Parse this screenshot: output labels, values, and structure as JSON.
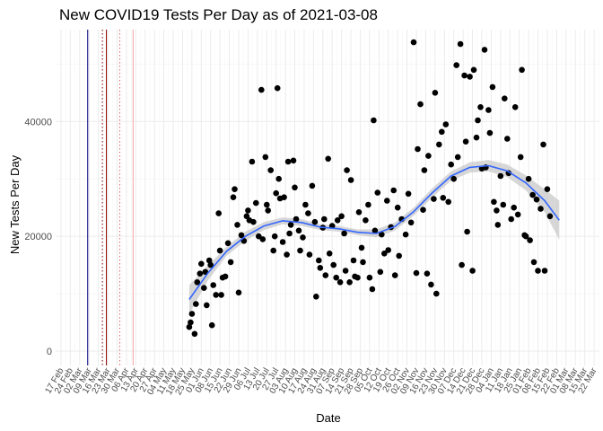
{
  "chart_data": {
    "type": "scatter",
    "title": "New COVID19 Tests Per Day as of 2021-03-08",
    "xlabel": "Date",
    "ylabel": "New Tests Per Day",
    "x_range": [
      "2020-02-13",
      "2021-03-26"
    ],
    "ylim": [
      -2500,
      56000
    ],
    "y_ticks": [
      0,
      20000,
      40000
    ],
    "y_tick_labels": [
      "0",
      "20000",
      "40000"
    ],
    "x_tick_labels": [
      "17 Feb",
      "24 Feb",
      "02 Mar",
      "09 Mar",
      "16 Mar",
      "23 Mar",
      "30 Mar",
      "06 Apr",
      "13 Apr",
      "20 Apr",
      "27 Apr",
      "04 May",
      "11 May",
      "18 May",
      "25 May",
      "01 Jun",
      "08 Jun",
      "15 Jun",
      "22 Jun",
      "29 Jun",
      "06 Jul",
      "13 Jul",
      "20 Jul",
      "27 Jul",
      "03 Aug",
      "10 Aug",
      "17 Aug",
      "24 Aug",
      "31 Aug",
      "07 Sep",
      "14 Sep",
      "21 Sep",
      "28 Sep",
      "05 Oct",
      "12 Oct",
      "19 Oct",
      "26 Oct",
      "02 Nov",
      "09 Nov",
      "16 Nov",
      "23 Nov",
      "30 Nov",
      "07 Dec",
      "14 Dec",
      "21 Dec",
      "28 Dec",
      "04 Jan",
      "11 Jan",
      "18 Jan",
      "25 Jan",
      "01 Feb",
      "08 Feb",
      "15 Feb",
      "22 Feb",
      "01 Mar",
      "08 Mar",
      "15 Mar",
      "22 Mar"
    ],
    "x_tick_dates": [
      "2020-02-17",
      "2020-02-24",
      "2020-03-02",
      "2020-03-09",
      "2020-03-16",
      "2020-03-23",
      "2020-03-30",
      "2020-04-06",
      "2020-04-13",
      "2020-04-20",
      "2020-04-27",
      "2020-05-04",
      "2020-05-11",
      "2020-05-18",
      "2020-05-25",
      "2020-06-01",
      "2020-06-08",
      "2020-06-15",
      "2020-06-22",
      "2020-06-29",
      "2020-07-06",
      "2020-07-13",
      "2020-07-20",
      "2020-07-27",
      "2020-08-03",
      "2020-08-10",
      "2020-08-17",
      "2020-08-24",
      "2020-08-31",
      "2020-09-07",
      "2020-09-14",
      "2020-09-21",
      "2020-09-28",
      "2020-10-05",
      "2020-10-12",
      "2020-10-19",
      "2020-10-26",
      "2020-11-02",
      "2020-11-09",
      "2020-11-16",
      "2020-11-23",
      "2020-11-30",
      "2020-12-07",
      "2020-12-14",
      "2020-12-21",
      "2020-12-28",
      "2021-01-04",
      "2021-01-11",
      "2021-01-18",
      "2021-01-25",
      "2021-02-01",
      "2021-02-08",
      "2021-02-15",
      "2021-02-22",
      "2021-03-01",
      "2021-03-08",
      "2021-03-15",
      "2021-03-22"
    ],
    "vlines": [
      {
        "date": "2020-03-08",
        "color": "#000080",
        "style": "solid"
      },
      {
        "date": "2020-03-19",
        "color": "#8b0000",
        "style": "dotted"
      },
      {
        "date": "2020-03-22",
        "color": "#8b0000",
        "style": "solid"
      },
      {
        "date": "2020-04-01",
        "color": "#e06666",
        "style": "dotted"
      },
      {
        "date": "2020-04-11",
        "color": "#f4a6a6",
        "style": "solid"
      }
    ],
    "grid": true,
    "point_color": "#000000",
    "smooth_color": "#3366ff",
    "band_color": "#c9c9c9",
    "series": [
      {
        "type": "points",
        "points": [
          [
            "2020-05-23",
            4200
          ],
          [
            "2020-05-24",
            5000
          ],
          [
            "2020-05-25",
            6500
          ],
          [
            "2020-05-27",
            3000
          ],
          [
            "2020-05-28",
            8200
          ],
          [
            "2020-05-29",
            12000
          ],
          [
            "2020-05-31",
            13500
          ],
          [
            "2020-06-01",
            15200
          ],
          [
            "2020-06-03",
            11000
          ],
          [
            "2020-06-04",
            13800
          ],
          [
            "2020-06-05",
            8000
          ],
          [
            "2020-06-07",
            15800
          ],
          [
            "2020-06-08",
            15000
          ],
          [
            "2020-06-09",
            4500
          ],
          [
            "2020-06-10",
            11500
          ],
          [
            "2020-06-12",
            9800
          ],
          [
            "2020-06-14",
            24000
          ],
          [
            "2020-06-15",
            17500
          ],
          [
            "2020-06-16",
            9800
          ],
          [
            "2020-06-17",
            12800
          ],
          [
            "2020-06-19",
            13000
          ],
          [
            "2020-06-21",
            18800
          ],
          [
            "2020-06-23",
            15500
          ],
          [
            "2020-06-25",
            26800
          ],
          [
            "2020-06-26",
            28200
          ],
          [
            "2020-06-28",
            22000
          ],
          [
            "2020-06-29",
            10200
          ],
          [
            "2020-07-01",
            20200
          ],
          [
            "2020-07-03",
            19200
          ],
          [
            "2020-07-05",
            23500
          ],
          [
            "2020-07-06",
            24500
          ],
          [
            "2020-07-07",
            22800
          ],
          [
            "2020-07-09",
            33000
          ],
          [
            "2020-07-10",
            22500
          ],
          [
            "2020-07-12",
            25800
          ],
          [
            "2020-07-14",
            20000
          ],
          [
            "2020-07-16",
            45500
          ],
          [
            "2020-07-17",
            19500
          ],
          [
            "2020-07-19",
            33800
          ],
          [
            "2020-07-20",
            25500
          ],
          [
            "2020-07-21",
            24500
          ],
          [
            "2020-07-23",
            31500
          ],
          [
            "2020-07-25",
            17500
          ],
          [
            "2020-07-26",
            20000
          ],
          [
            "2020-07-27",
            27500
          ],
          [
            "2020-07-28",
            45800
          ],
          [
            "2020-07-29",
            30000
          ],
          [
            "2020-07-30",
            26600
          ],
          [
            "2020-08-01",
            19000
          ],
          [
            "2020-08-02",
            26800
          ],
          [
            "2020-08-04",
            16800
          ],
          [
            "2020-08-05",
            33000
          ],
          [
            "2020-08-06",
            20500
          ],
          [
            "2020-08-07",
            22000
          ],
          [
            "2020-08-09",
            33200
          ],
          [
            "2020-08-10",
            28500
          ],
          [
            "2020-08-11",
            23000
          ],
          [
            "2020-08-13",
            21000
          ],
          [
            "2020-08-14",
            17500
          ],
          [
            "2020-08-16",
            19800
          ],
          [
            "2020-08-18",
            25500
          ],
          [
            "2020-08-20",
            24000
          ],
          [
            "2020-08-21",
            16800
          ],
          [
            "2020-08-23",
            28800
          ],
          [
            "2020-08-25",
            22500
          ],
          [
            "2020-08-26",
            9500
          ],
          [
            "2020-08-28",
            15800
          ],
          [
            "2020-08-29",
            14500
          ],
          [
            "2020-08-31",
            21500
          ],
          [
            "2020-09-01",
            23000
          ],
          [
            "2020-09-02",
            13200
          ],
          [
            "2020-09-04",
            33500
          ],
          [
            "2020-09-05",
            17000
          ],
          [
            "2020-09-07",
            21800
          ],
          [
            "2020-09-08",
            15000
          ],
          [
            "2020-09-10",
            12800
          ],
          [
            "2020-09-11",
            22800
          ],
          [
            "2020-09-13",
            12000
          ],
          [
            "2020-09-14",
            23500
          ],
          [
            "2020-09-16",
            20500
          ],
          [
            "2020-09-17",
            14000
          ],
          [
            "2020-09-18",
            31500
          ],
          [
            "2020-09-20",
            12000
          ],
          [
            "2020-09-21",
            29800
          ],
          [
            "2020-09-23",
            15800
          ],
          [
            "2020-09-24",
            13000
          ],
          [
            "2020-09-26",
            12800
          ],
          [
            "2020-09-27",
            24200
          ],
          [
            "2020-09-29",
            18000
          ],
          [
            "2020-09-30",
            15500
          ],
          [
            "2020-10-02",
            22800
          ],
          [
            "2020-10-04",
            25500
          ],
          [
            "2020-10-05",
            12800
          ],
          [
            "2020-10-07",
            10800
          ],
          [
            "2020-10-08",
            40200
          ],
          [
            "2020-10-09",
            21000
          ],
          [
            "2020-10-11",
            27600
          ],
          [
            "2020-10-13",
            13800
          ],
          [
            "2020-10-14",
            20300
          ],
          [
            "2020-10-16",
            17000
          ],
          [
            "2020-10-18",
            26200
          ],
          [
            "2020-10-19",
            17600
          ],
          [
            "2020-10-21",
            21600
          ],
          [
            "2020-10-23",
            28000
          ],
          [
            "2020-10-24",
            13200
          ],
          [
            "2020-10-26",
            25000
          ],
          [
            "2020-10-27",
            16600
          ],
          [
            "2020-10-29",
            23000
          ],
          [
            "2020-11-01",
            20300
          ],
          [
            "2020-11-03",
            27400
          ],
          [
            "2020-11-05",
            22400
          ],
          [
            "2020-11-07",
            53800
          ],
          [
            "2020-11-09",
            13600
          ],
          [
            "2020-11-10",
            35200
          ],
          [
            "2020-11-12",
            43000
          ],
          [
            "2020-11-14",
            24600
          ],
          [
            "2020-11-15",
            31500
          ],
          [
            "2020-11-17",
            13500
          ],
          [
            "2020-11-18",
            34000
          ],
          [
            "2020-11-20",
            11600
          ],
          [
            "2020-11-22",
            26500
          ],
          [
            "2020-11-23",
            45000
          ],
          [
            "2020-11-24",
            10000
          ],
          [
            "2020-11-26",
            36000
          ],
          [
            "2020-11-28",
            38200
          ],
          [
            "2020-11-29",
            26700
          ],
          [
            "2020-12-01",
            39500
          ],
          [
            "2020-12-03",
            26000
          ],
          [
            "2020-12-05",
            32500
          ],
          [
            "2020-12-07",
            30000
          ],
          [
            "2020-12-09",
            49800
          ],
          [
            "2020-12-10",
            33800
          ],
          [
            "2020-12-12",
            53500
          ],
          [
            "2020-12-13",
            15000
          ],
          [
            "2020-12-15",
            48000
          ],
          [
            "2020-12-16",
            36500
          ],
          [
            "2020-12-17",
            20800
          ],
          [
            "2020-12-19",
            47800
          ],
          [
            "2020-12-21",
            14000
          ],
          [
            "2020-12-22",
            49000
          ],
          [
            "2020-12-24",
            37200
          ],
          [
            "2020-12-25",
            40200
          ],
          [
            "2020-12-27",
            42500
          ],
          [
            "2020-12-28",
            31800
          ],
          [
            "2020-12-30",
            52500
          ],
          [
            "2020-12-31",
            32000
          ],
          [
            "2021-01-02",
            42000
          ],
          [
            "2021-01-03",
            38000
          ],
          [
            "2021-01-05",
            46000
          ],
          [
            "2021-01-06",
            26000
          ],
          [
            "2021-01-08",
            24500
          ],
          [
            "2021-01-09",
            22000
          ],
          [
            "2021-01-11",
            30500
          ],
          [
            "2021-01-13",
            25500
          ],
          [
            "2021-01-14",
            44000
          ],
          [
            "2021-01-16",
            37000
          ],
          [
            "2021-01-17",
            31000
          ],
          [
            "2021-01-19",
            23000
          ],
          [
            "2021-01-21",
            25000
          ],
          [
            "2021-01-22",
            42500
          ],
          [
            "2021-01-24",
            23800
          ],
          [
            "2021-01-26",
            33800
          ],
          [
            "2021-01-27",
            49000
          ],
          [
            "2021-01-29",
            20200
          ],
          [
            "2021-01-30",
            20000
          ],
          [
            "2021-02-01",
            30000
          ],
          [
            "2021-02-02",
            19300
          ],
          [
            "2021-02-04",
            27200
          ],
          [
            "2021-02-05",
            15500
          ],
          [
            "2021-02-07",
            26400
          ],
          [
            "2021-02-08",
            14000
          ],
          [
            "2021-02-10",
            24800
          ],
          [
            "2021-02-12",
            36000
          ],
          [
            "2021-02-13",
            14000
          ],
          [
            "2021-02-15",
            28200
          ],
          [
            "2021-02-17",
            23500
          ]
        ]
      },
      {
        "type": "smooth",
        "points": [
          [
            "2020-05-23",
            9000
          ],
          [
            "2020-06-06",
            13600
          ],
          [
            "2020-06-20",
            17400
          ],
          [
            "2020-07-04",
            20000
          ],
          [
            "2020-07-18",
            21800
          ],
          [
            "2020-08-01",
            22700
          ],
          [
            "2020-08-15",
            22400
          ],
          [
            "2020-08-29",
            21600
          ],
          [
            "2020-09-12",
            21300
          ],
          [
            "2020-09-26",
            20700
          ],
          [
            "2020-10-10",
            20500
          ],
          [
            "2020-10-24",
            21700
          ],
          [
            "2020-11-07",
            24300
          ],
          [
            "2020-11-21",
            27600
          ],
          [
            "2020-12-05",
            30500
          ],
          [
            "2020-12-19",
            32000
          ],
          [
            "2021-01-02",
            32300
          ],
          [
            "2021-01-16",
            31400
          ],
          [
            "2021-01-30",
            29300
          ],
          [
            "2021-02-13",
            26200
          ],
          [
            "2021-02-24",
            22800
          ]
        ],
        "band_lower": [
          6500,
          12300,
          16600,
          19200,
          21100,
          22100,
          21800,
          21100,
          20800,
          20200,
          19800,
          21000,
          23600,
          26800,
          29700,
          31100,
          31300,
          30300,
          28000,
          24200,
          19400
        ],
        "band_upper": [
          11500,
          14900,
          18200,
          20800,
          22500,
          23300,
          23000,
          22100,
          21800,
          21200,
          21200,
          22400,
          25000,
          28400,
          31300,
          32900,
          33300,
          32500,
          30600,
          28200,
          26200
        ]
      }
    ]
  }
}
